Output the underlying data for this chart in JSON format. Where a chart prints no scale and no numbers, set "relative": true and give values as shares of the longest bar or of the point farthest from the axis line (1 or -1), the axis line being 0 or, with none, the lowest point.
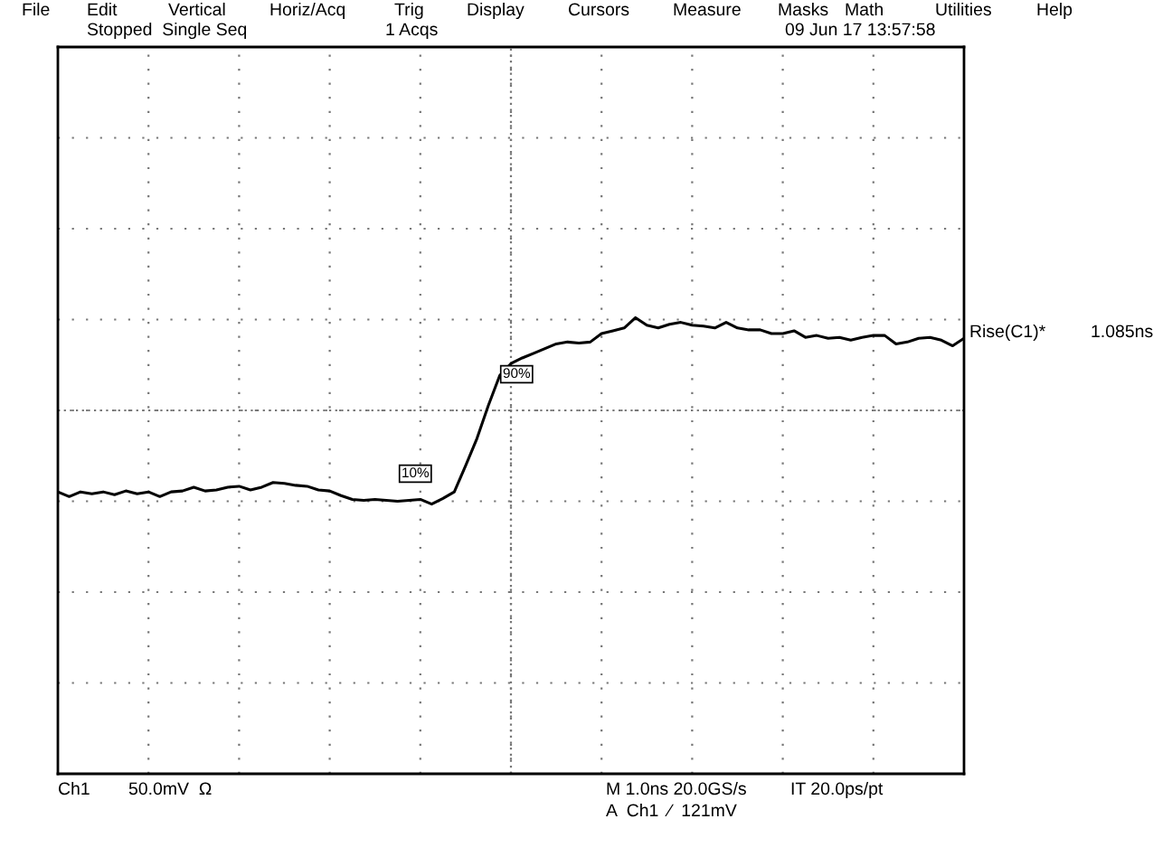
{
  "chart_data": {
    "type": "line",
    "relative": true,
    "grid": true,
    "categories": [
      null,
      null,
      null,
      null,
      null,
      null,
      null,
      null,
      null,
      null,
      null,
      null,
      null,
      null,
      null,
      null,
      null,
      null,
      null,
      null,
      null,
      null,
      null,
      null,
      null,
      null,
      null,
      null,
      null,
      null,
      null,
      null,
      null,
      null,
      null,
      null,
      null,
      null,
      null,
      null,
      null,
      null,
      null,
      null,
      null,
      null,
      null,
      null,
      null,
      null,
      null,
      null,
      null,
      null,
      null,
      null,
      null,
      null,
      null,
      null,
      null,
      null,
      null,
      null,
      null,
      null,
      null,
      null,
      null,
      null,
      null,
      null,
      null,
      null,
      null,
      null,
      null,
      null,
      null,
      null,
      null
    ],
    "series": [
      {
        "color": "#000000",
        "values": [
          -0.87,
          -0.92,
          -0.87,
          -0.89,
          -0.87,
          -0.9,
          -0.86,
          -0.89,
          -0.87,
          -0.92,
          -0.87,
          -0.86,
          -0.82,
          -0.86,
          -0.85,
          -0.82,
          -0.81,
          -0.85,
          -0.82,
          -0.77,
          -0.78,
          -0.8,
          -0.81,
          -0.85,
          -0.86,
          -0.91,
          -0.95,
          -0.96,
          -0.95,
          -0.96,
          -0.97,
          -0.96,
          -0.95,
          -1.0,
          -0.94,
          -0.87,
          -0.59,
          -0.3,
          0.05,
          0.37,
          0.5,
          0.56,
          0.61,
          0.66,
          0.71,
          0.73,
          0.72,
          0.73,
          0.82,
          0.85,
          0.88,
          0.99,
          0.91,
          0.88,
          0.92,
          0.94,
          0.91,
          0.9,
          0.88,
          0.94,
          0.88,
          0.86,
          0.86,
          0.82,
          0.82,
          0.85,
          0.78,
          0.8,
          0.77,
          0.78,
          0.75,
          0.78,
          0.8,
          0.8,
          0.71,
          0.73,
          0.77,
          0.78,
          0.75,
          0.69,
          0.77
        ]
      }
    ],
    "annotations": [
      "File",
      "Edit",
      "Vertical",
      "Horiz/Acq",
      "Trig",
      "Display",
      "Cursors",
      "Measure",
      "Masks",
      "Math",
      "Utilities",
      "Help",
      "Stopped  Single Seq",
      "1 Acqs",
      "09 Jun 17 13:57:58",
      "Rise(C1)*",
      "1.085ns",
      "Ch1",
      "50.0mV  Ω",
      "M 1.0ns 20.0GS/s",
      "IT 20.0ps/pt",
      "A  Ch1  ⁄  121mV",
      "10%",
      "90%"
    ]
  }
}
